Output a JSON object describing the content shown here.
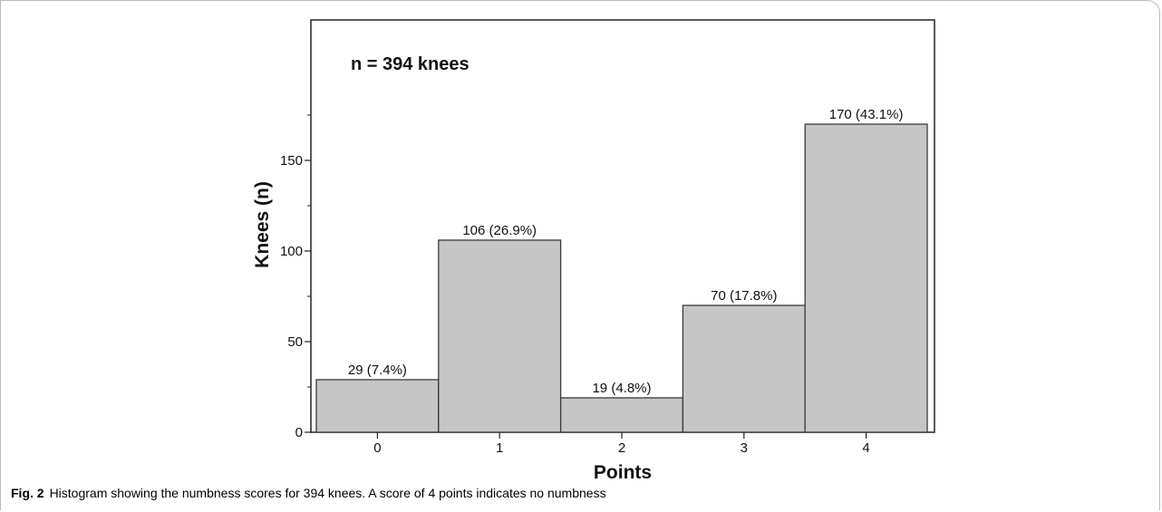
{
  "chart_data": {
    "type": "bar",
    "annotation": "n = 394 knees",
    "xlabel": "Points",
    "ylabel": "Knees (n)",
    "categories": [
      "0",
      "1",
      "2",
      "3",
      "4"
    ],
    "values": [
      29,
      106,
      19,
      70,
      170
    ],
    "data_labels": [
      "29 (7.4%)",
      "106 (26.9%)",
      "19 (4.8%)",
      "70 (17.8%)",
      "170 (43.1%)"
    ],
    "yticks": [
      0,
      50,
      100,
      150
    ],
    "ytick_labels": [
      "0",
      "50",
      "100",
      "150"
    ],
    "ylim": [
      0,
      198
    ],
    "grid": false,
    "bar_color": "#c6c6c6",
    "bar_edge_color": "#3a3a3a"
  },
  "caption": {
    "label": "Fig. 2",
    "text": "Histogram showing the numbness scores for 394 knees. A score of 4 points indicates no numbness"
  }
}
